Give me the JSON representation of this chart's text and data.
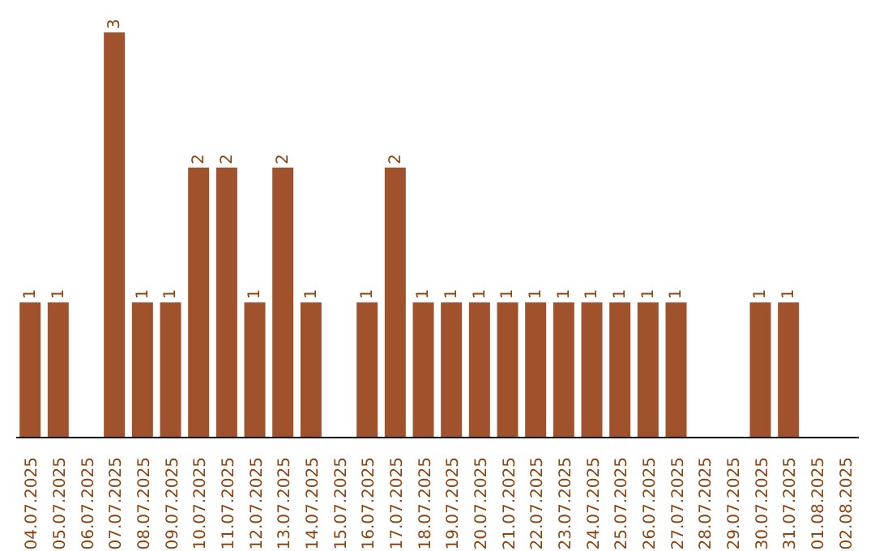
{
  "chart_data": {
    "type": "bar",
    "categories": [
      "04.07.2025",
      "05.07.2025",
      "06.07.2025",
      "07.07.2025",
      "08.07.2025",
      "09.07.2025",
      "10.07.2025",
      "11.07.2025",
      "12.07.2025",
      "13.07.2025",
      "14.07.2025",
      "15.07.2025",
      "16.07.2025",
      "17.07.2025",
      "18.07.2025",
      "19.07.2025",
      "20.07.2025",
      "21.07.2025",
      "22.07.2025",
      "23.07.2025",
      "24.07.2025",
      "25.07.2025",
      "26.07.2025",
      "27.07.2025",
      "28.07.2025",
      "29.07.2025",
      "30.07.2025",
      "31.07.2025",
      "01.08.2025",
      "02.08.2025"
    ],
    "values": [
      1,
      1,
      0,
      3,
      1,
      1,
      2,
      2,
      1,
      2,
      1,
      0,
      1,
      2,
      1,
      1,
      1,
      1,
      1,
      1,
      1,
      1,
      1,
      1,
      0,
      0,
      1,
      1,
      0,
      0
    ],
    "value_labels": [
      "1",
      "1",
      null,
      "3",
      "1",
      "1",
      "2",
      "2",
      "1",
      "2",
      "1",
      null,
      "1",
      "2",
      "1",
      "1",
      "1",
      "1",
      "1",
      "1",
      "1",
      "1",
      "1",
      "1",
      null,
      null,
      "1",
      "1",
      null,
      null
    ],
    "color": "#a0522d",
    "grid": false,
    "legend": false
  }
}
